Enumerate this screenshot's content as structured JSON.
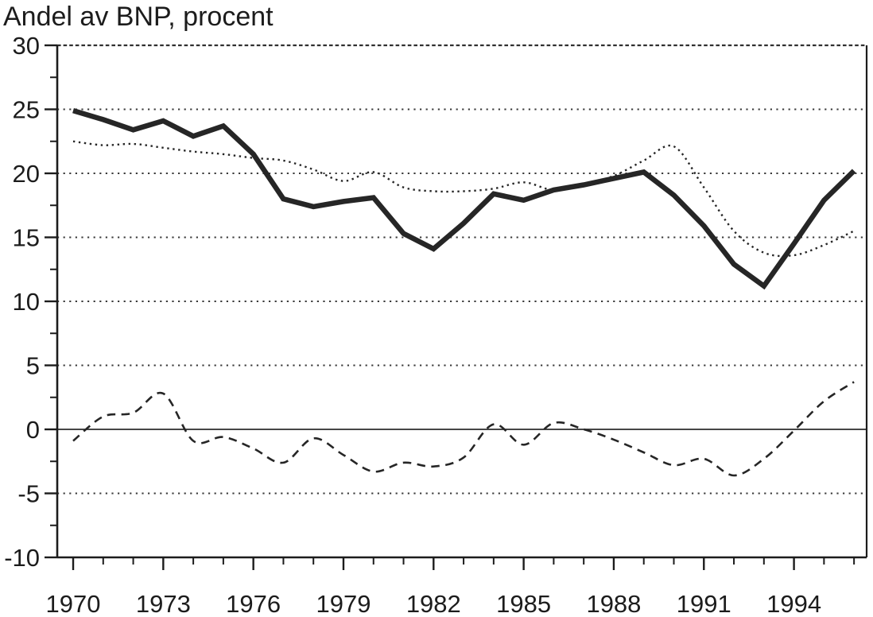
{
  "title": "Andel av BNP, procent",
  "colors": {
    "ink": "#1c1c1c",
    "series_line": "#262626",
    "grid": "#3a3a3a",
    "background": "#ffffff"
  },
  "chart_data": {
    "type": "line",
    "title": "Andel av BNP, procent",
    "ylabel": "Andel av BNP, procent",
    "xlabel": "",
    "legend": "none",
    "grid": "horizontal dotted lines at labeled y values; solid line at 0; dashed top border at 30",
    "x": [
      1970,
      1971,
      1972,
      1973,
      1974,
      1975,
      1976,
      1977,
      1978,
      1979,
      1980,
      1981,
      1982,
      1983,
      1984,
      1985,
      1986,
      1987,
      1988,
      1989,
      1990,
      1991,
      1992,
      1993,
      1994,
      1995,
      1996
    ],
    "series": [
      {
        "name": "thick-solid-line",
        "style": "solid",
        "weight": "thick",
        "values": [
          24.9,
          24.2,
          23.4,
          24.1,
          22.9,
          23.7,
          21.5,
          18.0,
          17.4,
          17.8,
          18.1,
          15.3,
          14.1,
          16.1,
          18.4,
          17.9,
          18.7,
          19.1,
          19.6,
          20.1,
          18.3,
          15.9,
          12.9,
          11.2,
          14.5,
          17.9,
          20.2
        ]
      },
      {
        "name": "thin-dotted-line",
        "style": "dotted",
        "weight": "thin",
        "values": [
          22.5,
          22.2,
          22.3,
          22.0,
          21.7,
          21.5,
          21.2,
          21.0,
          20.3,
          19.4,
          20.1,
          18.9,
          18.6,
          18.6,
          18.8,
          19.3,
          18.7,
          19.2,
          19.8,
          21.0,
          22.1,
          18.9,
          15.5,
          13.8,
          13.6,
          14.4,
          15.5
        ]
      },
      {
        "name": "dashed-line",
        "style": "dashed",
        "weight": "thin",
        "values": [
          -0.9,
          1.0,
          1.3,
          2.8,
          -0.9,
          -0.6,
          -1.5,
          -2.6,
          -0.7,
          -2.0,
          -3.3,
          -2.6,
          -2.9,
          -2.2,
          0.4,
          -1.2,
          0.5,
          0.0,
          -0.8,
          -1.8,
          -2.8,
          -2.3,
          -3.6,
          -2.3,
          -0.1,
          2.2,
          3.7
        ]
      }
    ],
    "xticks_labeled": [
      1970,
      1973,
      1976,
      1979,
      1982,
      1985,
      1988,
      1991,
      1994
    ],
    "xticks_minor": [
      1971,
      1972,
      1974,
      1975,
      1977,
      1978,
      1980,
      1981,
      1983,
      1984,
      1986,
      1987,
      1989,
      1990,
      1992,
      1993,
      1995,
      1996
    ],
    "yticks_labeled": [
      30,
      25,
      20,
      15,
      10,
      5,
      0,
      -5,
      -10
    ],
    "yticks_minor": [
      27.5,
      22.5,
      17.5,
      12.5,
      7.5,
      2.5,
      -2.5,
      -7.5
    ],
    "ygrid_dotted": [
      25,
      20,
      15,
      10,
      5,
      -5
    ],
    "ygrid_solid": [
      0
    ],
    "ylim": [
      -10,
      30
    ],
    "xlim": [
      1969.47,
      1996.42
    ]
  }
}
